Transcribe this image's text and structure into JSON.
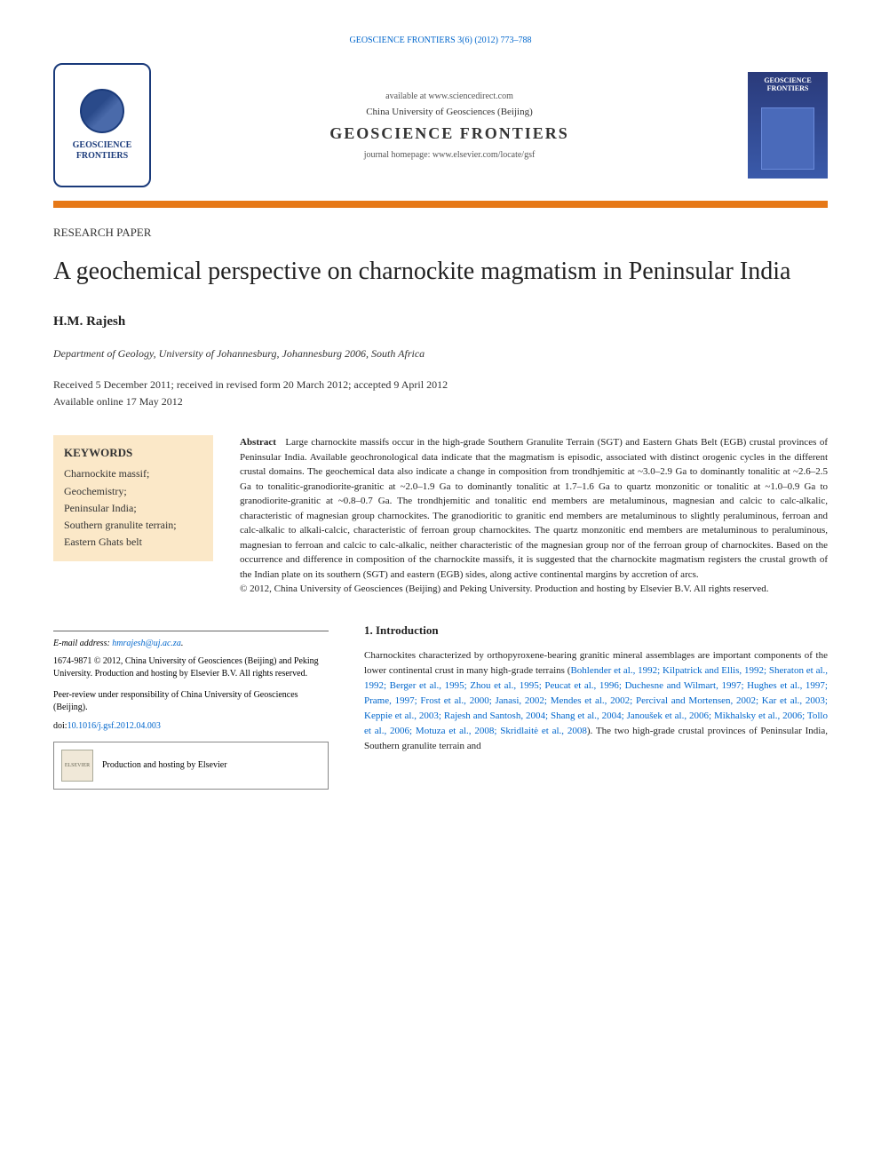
{
  "header": {
    "journal_ref": "GEOSCIENCE FRONTIERS 3(6) (2012) 773–788",
    "avail": "available at www.sciencedirect.com",
    "university": "China University of Geosciences (Beijing)",
    "journal_name": "GEOSCIENCE FRONTIERS",
    "homepage": "journal homepage: www.elsevier.com/locate/gsf",
    "logo_text_1": "GEOSCIENCE",
    "logo_text_2": "FRONTIERS",
    "cover_title": "GEOSCIENCE FRONTIERS"
  },
  "paper": {
    "type": "RESEARCH PAPER",
    "title": "A geochemical perspective on charnockite magmatism in Peninsular India",
    "author": "H.M. Rajesh",
    "affiliation": "Department of Geology, University of Johannesburg, Johannesburg 2006, South Africa",
    "dates": "Received 5 December 2011; received in revised form 20 March 2012; accepted 9 April 2012",
    "dates_avail": "Available online 17 May 2012"
  },
  "keywords": {
    "title": "KEYWORDS",
    "items": [
      "Charnockite massif;",
      "Geochemistry;",
      "Peninsular India;",
      "Southern granulite terrain;",
      "Eastern Ghats belt"
    ]
  },
  "abstract": {
    "label": "Abstract",
    "body": "Large charnockite massifs occur in the high-grade Southern Granulite Terrain (SGT) and Eastern Ghats Belt (EGB) crustal provinces of Peninsular India. Available geochronological data indicate that the magmatism is episodic, associated with distinct orogenic cycles in the different crustal domains. The geochemical data also indicate a change in composition from trondhjemitic at ~3.0–2.9 Ga to dominantly tonalitic at ~2.6–2.5 Ga to tonalitic-granodiorite-granitic at ~2.0–1.9 Ga to dominantly tonalitic at 1.7–1.6 Ga to quartz monzonitic or tonalitic at ~1.0–0.9 Ga to granodiorite-granitic at ~0.8–0.7 Ga. The trondhjemitic and tonalitic end members are metaluminous, magnesian and calcic to calc-alkalic, characteristic of magnesian group charnockites. The granodioritic to granitic end members are metaluminous to slightly peraluminous, ferroan and calc-alkalic to alkali-calcic, characteristic of ferroan group charnockites. The quartz monzonitic end members are metaluminous to peraluminous, magnesian to ferroan and calcic to calc-alkalic, neither characteristic of the magnesian group nor of the ferroan group of charnockites. Based on the occurrence and difference in composition of the charnockite massifs, it is suggested that the charnockite magmatism registers the crustal growth of the Indian plate on its southern (SGT) and eastern (EGB) sides, along active continental margins by accretion of arcs.",
    "copyright": "© 2012, China University of Geosciences (Beijing) and Peking University. Production and hosting by Elsevier B.V. All rights reserved."
  },
  "footer_left": {
    "email_label": "E-mail address:",
    "email": "hmrajesh@uj.ac.za",
    "issn": "1674-9871 © 2012, China University of Geosciences (Beijing) and Peking University. Production and hosting by Elsevier B.V. All rights reserved.",
    "peer": "Peer-review under responsibility of China University of Geosciences (Beijing).",
    "doi_prefix": "doi:",
    "doi": "10.1016/j.gsf.2012.04.003",
    "elsevier_text": "Production and hosting by Elsevier",
    "elsevier_logo": "ELSEVIER"
  },
  "introduction": {
    "heading": "1. Introduction",
    "text_pre": "Charnockites characterized by orthopyroxene-bearing granitic mineral assemblages are important components of the lower continental crust in many high-grade terrains (",
    "refs": "Bohlender et al., 1992; Kilpatrick and Ellis, 1992; Sheraton et al., 1992; Berger et al., 1995; Zhou et al., 1995; Peucat et al., 1996; Duchesne and Wilmart, 1997; Hughes et al., 1997; Prame, 1997; Frost et al., 2000; Janasi, 2002; Mendes et al., 2002; Percival and Mortensen, 2002; Kar et al., 2003; Keppie et al., 2003; Rajesh and Santosh, 2004; Shang et al., 2004; Janoušek et al., 2006; Mikhalsky et al., 2006; Tollo et al., 2006; Motuza et al., 2008; Skridlaitė et al., 2008",
    "text_post": "). The two high-grade crustal provinces of Peninsular India, Southern granulite terrain and"
  },
  "styling": {
    "orange_bar_color": "#e67817",
    "keywords_bg": "#fbe8c8",
    "link_color": "#0066cc",
    "logo_border_color": "#1a3a7a",
    "cover_bg_top": "#2a3a7a",
    "cover_bg_bottom": "#3a5aaa",
    "page_bg": "#ffffff",
    "text_color": "#222222",
    "title_fontsize": 28,
    "author_fontsize": 15,
    "body_fontsize": 11,
    "keywords_fontsize": 12
  }
}
